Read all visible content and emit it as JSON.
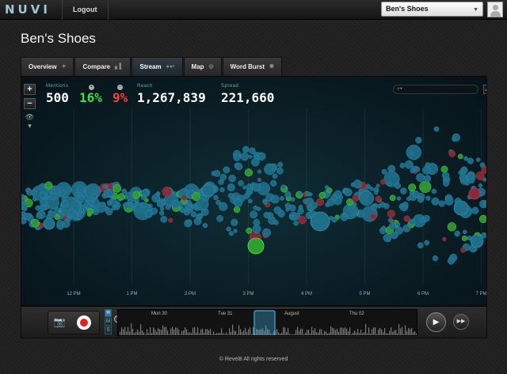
{
  "app": {
    "logo": "NUVI",
    "logout_label": "Logout"
  },
  "account": {
    "selected": "Ben's Shoes"
  },
  "page": {
    "title": "Ben's Shoes"
  },
  "tabs": [
    {
      "label": "Overview",
      "icon": "sparkle-icon"
    },
    {
      "label": "Compare",
      "icon": "bar-chart-icon"
    },
    {
      "label": "Stream",
      "icon": "stream-icon",
      "active": true
    },
    {
      "label": "Map",
      "icon": "globe-icon"
    },
    {
      "label": "Word Burst",
      "icon": "burst-icon"
    }
  ],
  "controls": {
    "zoom_in": "+",
    "zoom_out": "−"
  },
  "stats": {
    "mentions": {
      "label": "Mentions",
      "value": "500"
    },
    "positive": {
      "value": "16%",
      "indicator": "+"
    },
    "negative": {
      "value": "9%",
      "indicator": "−"
    },
    "reach": {
      "label": "Reach",
      "value": "1,267,839"
    },
    "spread": {
      "label": "Spread",
      "value": "221,660"
    }
  },
  "search": {
    "placeholder": ""
  },
  "time_axis": [
    "12 PM",
    "1 PM",
    "2 PM",
    "3 PM",
    "4 PM",
    "5 PM",
    "6 PM",
    "7 PM"
  ],
  "timeline": {
    "granularity": [
      "H",
      "M",
      "S"
    ],
    "selected_granularity": "H",
    "dates": [
      "Mon 30",
      "Tue 31",
      "August",
      "Thu 02"
    ]
  },
  "colors": {
    "neutral": "#1f6f8b",
    "positive": "#2e9e2e",
    "negative": "#8a2a36",
    "accent": "#3fb0e0"
  },
  "footer": {
    "text": "© Revel8 All rights reserved"
  }
}
